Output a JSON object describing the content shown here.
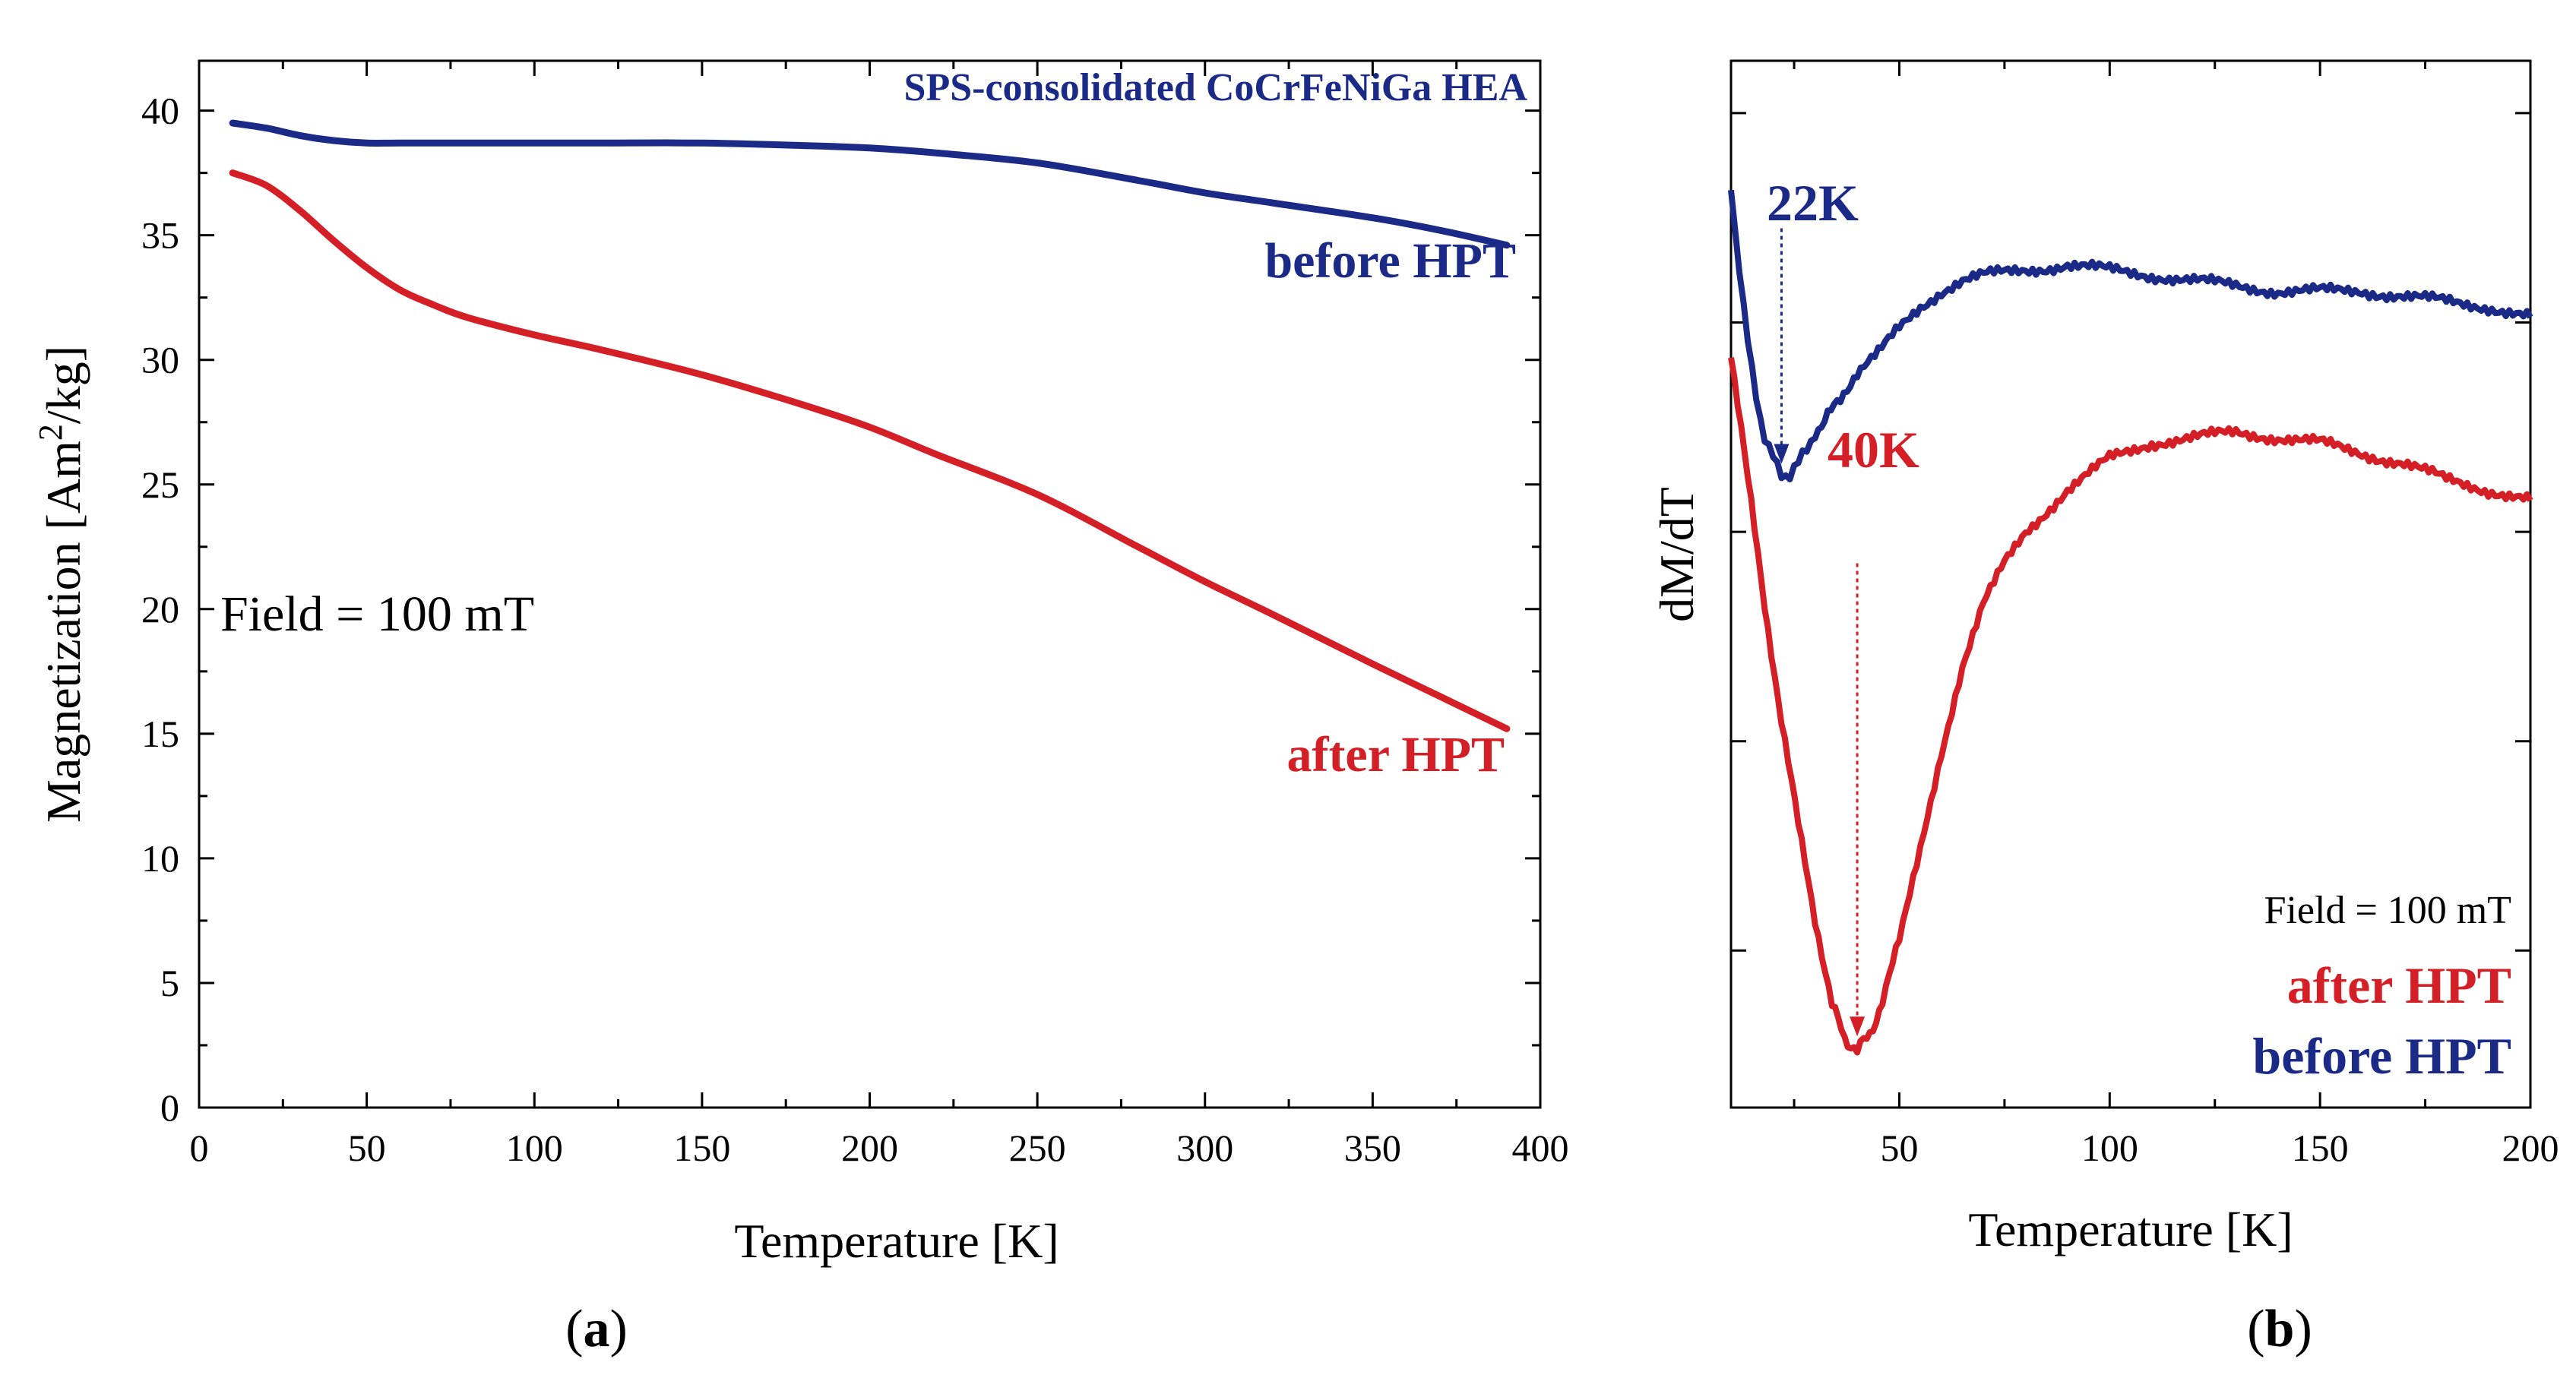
{
  "chart_data": [
    {
      "panel_label_text": "(a)",
      "panel_label_main": "a",
      "type": "line",
      "title": "SPS-consolidated CoCrFeNiGa HEA",
      "xlabel": "Temperature [K]",
      "ylabel_main": "Magnetization [Am",
      "ylabel_sup": "2",
      "ylabel_tail": "/kg]",
      "xlim": [
        0,
        400
      ],
      "ylim": [
        0,
        42
      ],
      "xticks": [
        0,
        50,
        100,
        150,
        200,
        250,
        300,
        350,
        400
      ],
      "yticks": [
        0,
        5,
        10,
        15,
        20,
        25,
        30,
        35,
        40
      ],
      "annotation": "Field = 100 mT",
      "series": [
        {
          "name": "before HPT",
          "color": "#1a2a86",
          "x": [
            10,
            20,
            30,
            40,
            50,
            60,
            80,
            100,
            120,
            150,
            180,
            200,
            220,
            250,
            280,
            300,
            320,
            350,
            370,
            390
          ],
          "y": [
            39.5,
            39.3,
            39.0,
            38.8,
            38.7,
            38.7,
            38.7,
            38.7,
            38.7,
            38.7,
            38.6,
            38.5,
            38.3,
            37.9,
            37.2,
            36.7,
            36.3,
            35.7,
            35.2,
            34.6
          ]
        },
        {
          "name": "after HPT",
          "color": "#d41f26",
          "x": [
            10,
            20,
            30,
            40,
            50,
            60,
            70,
            80,
            100,
            120,
            150,
            180,
            200,
            220,
            250,
            280,
            300,
            320,
            350,
            370,
            390
          ],
          "y": [
            37.5,
            37.0,
            36.0,
            34.8,
            33.7,
            32.8,
            32.2,
            31.7,
            31.0,
            30.4,
            29.4,
            28.2,
            27.3,
            26.2,
            24.6,
            22.5,
            21.1,
            19.8,
            17.8,
            16.5,
            15.2
          ]
        }
      ]
    },
    {
      "panel_label_text": "(b)",
      "panel_label_main": "b",
      "type": "line",
      "title": "",
      "xlabel": "Temperature [K]",
      "ylabel": "dM/dT",
      "xlim": [
        10,
        200
      ],
      "ylim": [
        0,
        1
      ],
      "xticks": [
        50,
        100,
        150,
        200
      ],
      "annotation": "Field = 100 mT",
      "legend": [
        "after HPT",
        "before HPT"
      ],
      "peaks": [
        {
          "label": "22K",
          "x": 22,
          "series": "before HPT"
        },
        {
          "label": "40K",
          "x": 40,
          "series": "after HPT"
        }
      ],
      "series": [
        {
          "name": "before HPT",
          "color": "#1a2a86",
          "x": [
            10,
            12,
            14,
            16,
            18,
            20,
            22,
            24,
            26,
            28,
            30,
            33,
            36,
            40,
            45,
            50,
            55,
            60,
            65,
            70,
            80,
            90,
            100,
            110,
            120,
            130,
            140,
            150,
            160,
            170,
            180,
            190,
            200
          ],
          "y": [
            0.88,
            0.8,
            0.73,
            0.68,
            0.64,
            0.62,
            0.605,
            0.605,
            0.615,
            0.63,
            0.645,
            0.66,
            0.68,
            0.7,
            0.72,
            0.745,
            0.765,
            0.78,
            0.79,
            0.795,
            0.8,
            0.805,
            0.8,
            0.795,
            0.79,
            0.785,
            0.78,
            0.78,
            0.78,
            0.775,
            0.77,
            0.765,
            0.755
          ]
        },
        {
          "name": "after HPT",
          "color": "#d41f26",
          "x": [
            10,
            14,
            18,
            22,
            26,
            30,
            34,
            37,
            40,
            43,
            46,
            50,
            55,
            60,
            65,
            70,
            75,
            80,
            90,
            100,
            110,
            120,
            130,
            140,
            150,
            160,
            170,
            180,
            190,
            200
          ],
          "y": [
            0.72,
            0.6,
            0.48,
            0.37,
            0.27,
            0.18,
            0.1,
            0.065,
            0.055,
            0.07,
            0.1,
            0.16,
            0.25,
            0.34,
            0.42,
            0.48,
            0.52,
            0.55,
            0.59,
            0.62,
            0.635,
            0.64,
            0.645,
            0.64,
            0.635,
            0.625,
            0.615,
            0.6,
            0.59,
            0.58
          ]
        }
      ]
    }
  ]
}
